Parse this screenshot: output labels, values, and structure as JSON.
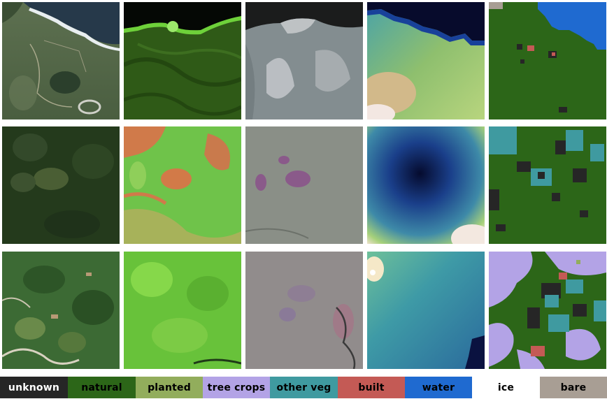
{
  "legend": {
    "items": [
      {
        "label": "unknown",
        "color": "#262626",
        "text_color": "#ffffff"
      },
      {
        "label": "natural",
        "color": "#2c6618",
        "text_color": "#000000"
      },
      {
        "label": "planted",
        "color": "#92ad5c",
        "text_color": "#000000"
      },
      {
        "label": "tree crops",
        "color": "#b3a3e6",
        "text_color": "#000000"
      },
      {
        "label": "other veg",
        "color": "#3f9aa0",
        "text_color": "#000000"
      },
      {
        "label": "built",
        "color": "#c45a55",
        "text_color": "#000000"
      },
      {
        "label": "water",
        "color": "#1f6ad0",
        "text_color": "#000000"
      },
      {
        "label": "ice",
        "color": "#ffffff",
        "text_color": "#000000"
      },
      {
        "label": "bare",
        "color": "#a89e94",
        "text_color": "#000000"
      }
    ]
  },
  "grid": {
    "rows": [
      {
        "tiles": [
          "rgb-coast",
          "false-color-coast",
          "radar-coast",
          "elevation-coast",
          "landcover-coast"
        ]
      },
      {
        "tiles": [
          "rgb-forest",
          "false-color-forest",
          "radar-forest",
          "elevation-forest",
          "landcover-forest"
        ]
      },
      {
        "tiles": [
          "rgb-fields",
          "false-color-fields",
          "radar-fields",
          "elevation-fields",
          "landcover-fields"
        ]
      }
    ]
  }
}
